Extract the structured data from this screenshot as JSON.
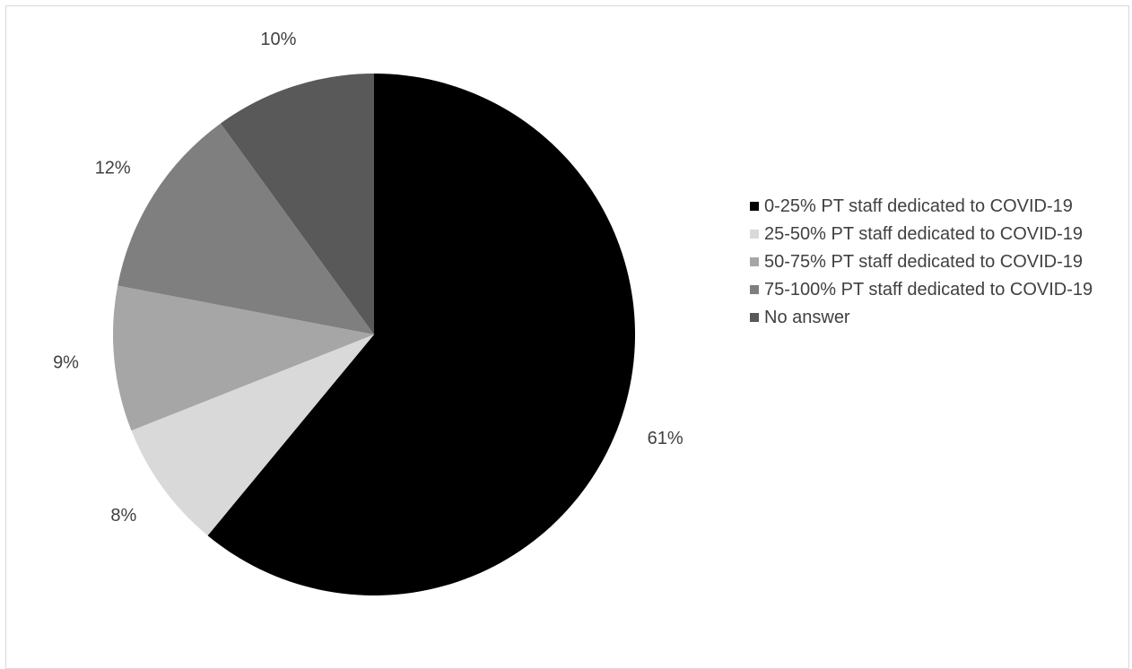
{
  "chart_data": {
    "type": "pie",
    "title": "",
    "start_angle_deg": 0,
    "direction": "clockwise",
    "slices": [
      {
        "label": "0-25% PT  staff dedicated to COVID-19",
        "value": 61,
        "display": "61%",
        "color": "#000000"
      },
      {
        "label": "25-50% PT  staff dedicated to COVID-19",
        "value": 8,
        "display": "8%",
        "color": "#d9d9d9"
      },
      {
        "label": "50-75% PT  staff dedicated to COVID-19",
        "value": 9,
        "display": "9%",
        "color": "#a6a6a6"
      },
      {
        "label": "75-100% PT  staff dedicated to COVID-19",
        "value": 12,
        "display": "12%",
        "color": "#7f7f7f"
      },
      {
        "label": "No answer",
        "value": 10,
        "display": "10%",
        "color": "#595959"
      }
    ],
    "legend_position": "right"
  }
}
